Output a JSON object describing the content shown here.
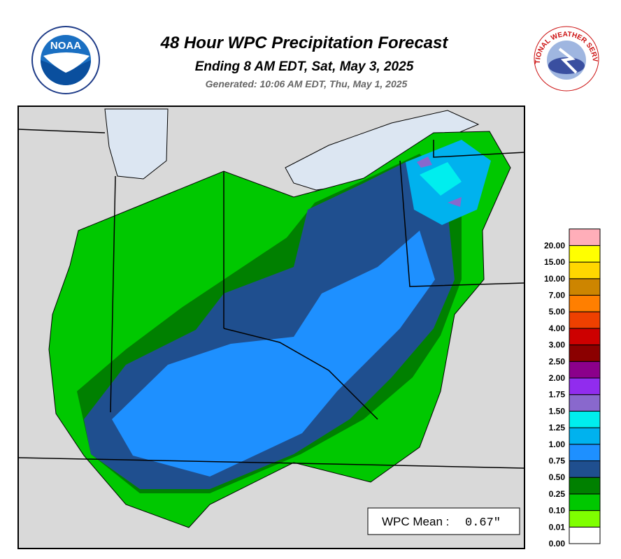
{
  "header": {
    "title": "48 Hour WPC Precipitation Forecast",
    "subtitle": "Ending 8 AM EDT, Sat, May 3, 2025",
    "generated": "Generated: 10:06 AM EDT, Thu, May 1, 2025"
  },
  "logos": {
    "noaa": "NOAA",
    "nws": "NATIONAL WEATHER SERVICE"
  },
  "legend": {
    "labels": [
      "0.00",
      "0.01",
      "0.10",
      "0.25",
      "0.50",
      "0.75",
      "1.00",
      "1.25",
      "1.50",
      "1.75",
      "2.00",
      "2.50",
      "3.00",
      "4.00",
      "5.00",
      "7.00",
      "10.00",
      "15.00",
      "20.00"
    ],
    "colors": [
      "#ffffff",
      "#7fff00",
      "#00c800",
      "#008000",
      "#1f4f8f",
      "#1e90ff",
      "#00b2ee",
      "#00eeee",
      "#8968cd",
      "#912cee",
      "#8b008b",
      "#8b0000",
      "#cd0000",
      "#ee4000",
      "#ff7f00",
      "#cd8500",
      "#ffd700",
      "#ffff00",
      "#ffaeb9"
    ]
  },
  "mean": {
    "label": "WPC Mean :",
    "value": "0.67\""
  }
}
